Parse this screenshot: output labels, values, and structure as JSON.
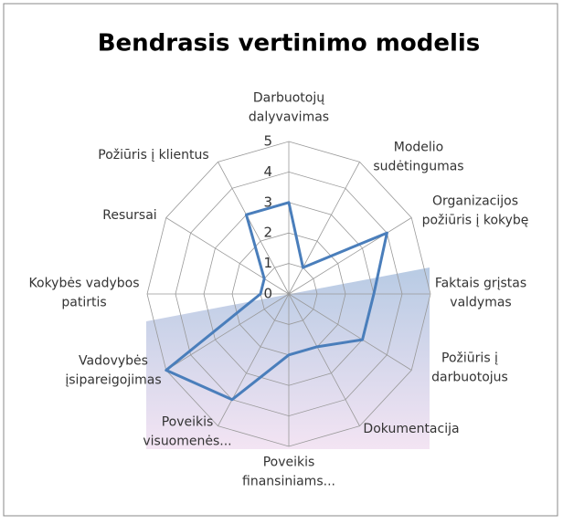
{
  "chart_data": {
    "type": "radar",
    "title": "Bendrasis vertinimo modelis",
    "categories": [
      "Darbuotojų\ndalyvavimas",
      "Modelio\nsudėtingumas",
      "Organizacijos\npožiūris į kokybę",
      "Faktais grįstas\nvaldymas",
      "Požiūris į\ndarbuotojus",
      "Dokumentacija",
      "Poveikis\nfinansiniams...",
      "Poveikis\nvisuomenės...",
      "Vadovybės\nįsipareigojimas",
      "Kokybės vadybos\npatirtis",
      "Resursai",
      "Požiūris į klientus"
    ],
    "values": [
      3,
      1,
      4,
      3,
      3,
      2,
      2,
      4,
      5,
      1,
      1,
      3
    ],
    "color": "#4a7ebb",
    "rlim": [
      0,
      5
    ],
    "rticks": [
      0,
      1,
      2,
      3,
      4,
      5
    ],
    "grid": true
  }
}
